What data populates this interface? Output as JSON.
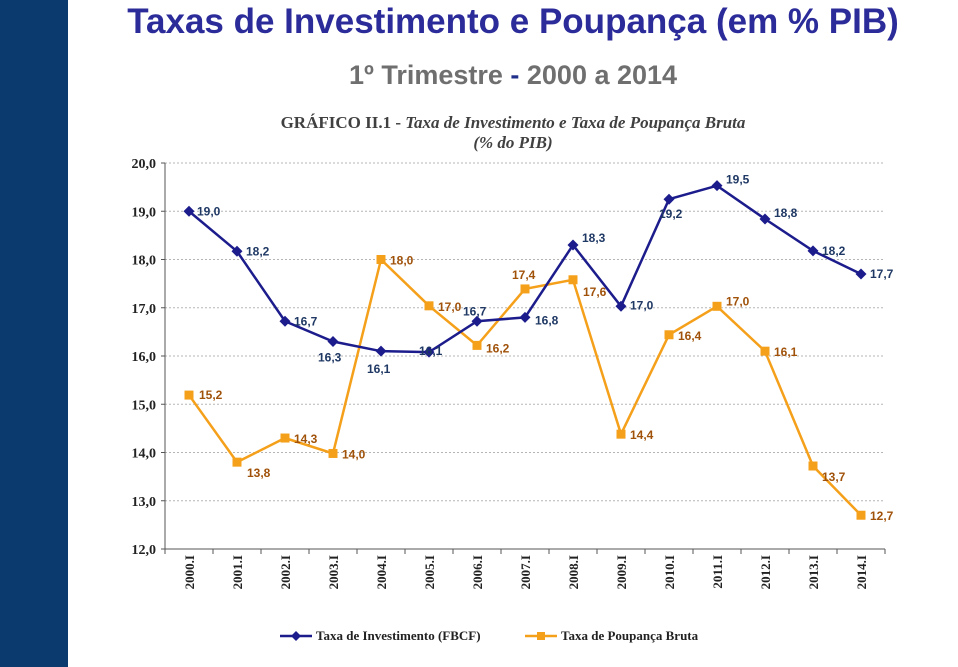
{
  "slide": {
    "title": "Taxas de Investimento e Poupança  (em % PIB)",
    "subtitle_part1": "1º Trimestre ",
    "subtitle_dash": "-",
    "subtitle_part2": " 2000 a 2014"
  },
  "colors": {
    "band": "#0a3a6e",
    "investimento": "#1c1c8c",
    "poupanca": "#f5a01a"
  },
  "chart_data": {
    "type": "line",
    "title_prefix": "GRÁFICO II.1 - ",
    "title_italic": "Taxa de Investimento e Taxa de Poupança Bruta",
    "title_line2": "(% do PIB)",
    "xlabel": "",
    "ylabel": "",
    "ylim": [
      12,
      20
    ],
    "yticks": [
      "12,0",
      "13,0",
      "14,0",
      "15,0",
      "16,0",
      "17,0",
      "18,0",
      "19,0",
      "20,0"
    ],
    "grid": true,
    "legend_position": "bottom",
    "categories": [
      "2000.I",
      "2001.I",
      "2002.I",
      "2003.I",
      "2004.I",
      "2005.I",
      "2006.I",
      "2007.I",
      "2008.I",
      "2009.I",
      "2010.I",
      "2011.I",
      "2012.I",
      "2013.I",
      "2014.I"
    ],
    "series": [
      {
        "name": "Taxa de Investimento (FBCF)",
        "values": [
          19.0,
          18.17,
          16.72,
          16.3,
          16.1,
          16.08,
          16.72,
          16.8,
          18.3,
          17.03,
          19.25,
          19.53,
          18.84,
          18.18,
          17.7
        ],
        "labels": [
          "19,0",
          "18,2",
          "16,7",
          "16,3",
          "16,1",
          "16,1",
          "16,7",
          "16,8",
          "18,3",
          "17,0",
          "19,2",
          "19,5",
          "18,8",
          "18,2",
          "17,7"
        ]
      },
      {
        "name": "Taxa de Poupança Bruta",
        "values": [
          15.19,
          13.8,
          14.3,
          13.98,
          18.0,
          17.04,
          16.22,
          17.39,
          17.58,
          14.38,
          16.44,
          17.03,
          16.1,
          13.72,
          12.7
        ],
        "labels": [
          "15,2",
          "13,8",
          "14,3",
          "14,0",
          "18,0",
          "17,0",
          "16,2",
          "17,4",
          "17,6",
          "14,4",
          "16,4",
          "17,0",
          "16,1",
          "13,7",
          "12,7"
        ]
      }
    ]
  }
}
